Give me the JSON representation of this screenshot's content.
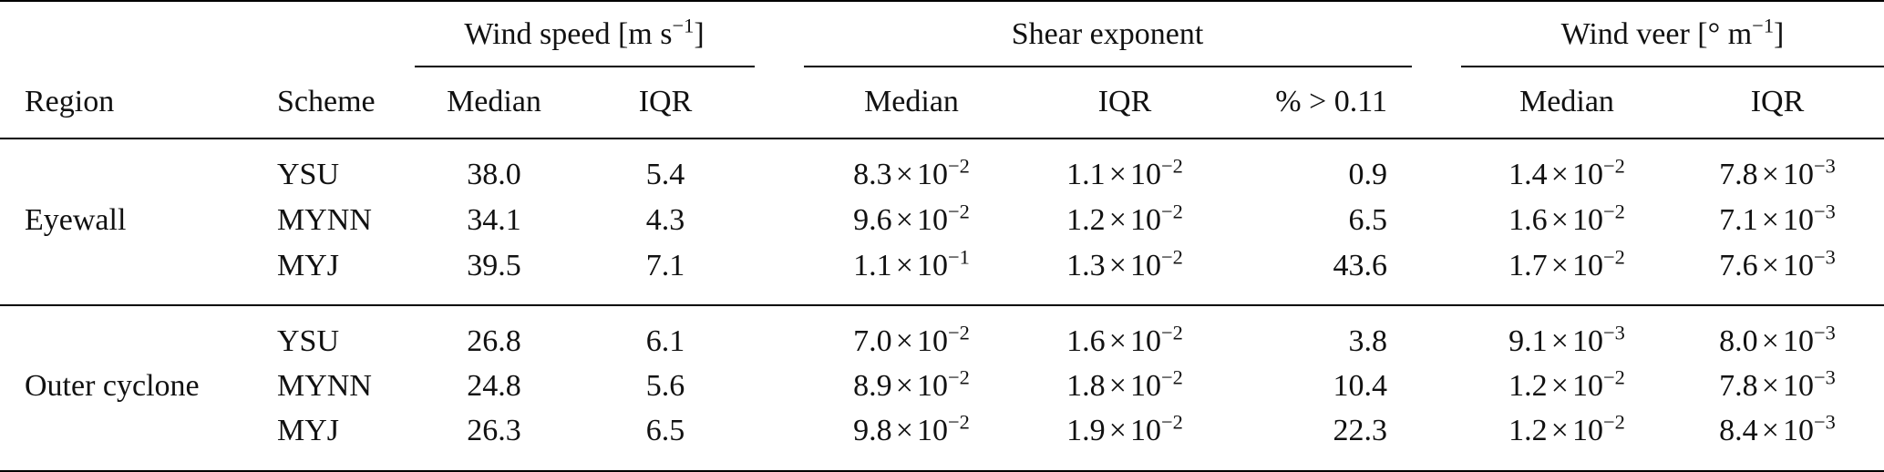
{
  "header": {
    "groups": {
      "wind_speed": {
        "label": "Wind speed [m s",
        "sup": "−1",
        "suffix": "]"
      },
      "shear": {
        "label": "Shear exponent"
      },
      "wind_veer": {
        "label": "Wind veer [° m",
        "sup": "−1",
        "suffix": "]"
      }
    },
    "cols": {
      "region": "Region",
      "scheme": "Scheme",
      "ws_median": "Median",
      "ws_iqr": "IQR",
      "sh_median": "Median",
      "sh_iqr": "IQR",
      "sh_pct": "% > 0.11",
      "wv_median": "Median",
      "wv_iqr": "IQR"
    }
  },
  "regions": [
    {
      "name": "Eyewall",
      "rows": [
        {
          "scheme": "YSU",
          "ws_median": "38.0",
          "ws_iqr": "5.4",
          "sh_median": {
            "m": "8.3",
            "e": "−2"
          },
          "sh_iqr": {
            "m": "1.1",
            "e": "−2"
          },
          "sh_pct": "0.9",
          "wv_median": {
            "m": "1.4",
            "e": "−2"
          },
          "wv_iqr": {
            "m": "7.8",
            "e": "−3"
          }
        },
        {
          "scheme": "MYNN",
          "ws_median": "34.1",
          "ws_iqr": "4.3",
          "sh_median": {
            "m": "9.6",
            "e": "−2"
          },
          "sh_iqr": {
            "m": "1.2",
            "e": "−2"
          },
          "sh_pct": "6.5",
          "wv_median": {
            "m": "1.6",
            "e": "−2"
          },
          "wv_iqr": {
            "m": "7.1",
            "e": "−3"
          }
        },
        {
          "scheme": "MYJ",
          "ws_median": "39.5",
          "ws_iqr": "7.1",
          "sh_median": {
            "m": "1.1",
            "e": "−1"
          },
          "sh_iqr": {
            "m": "1.3",
            "e": "−2"
          },
          "sh_pct": "43.6",
          "wv_median": {
            "m": "1.7",
            "e": "−2"
          },
          "wv_iqr": {
            "m": "7.6",
            "e": "−3"
          }
        }
      ]
    },
    {
      "name": "Outer cyclone",
      "rows": [
        {
          "scheme": "YSU",
          "ws_median": "26.8",
          "ws_iqr": "6.1",
          "sh_median": {
            "m": "7.0",
            "e": "−2"
          },
          "sh_iqr": {
            "m": "1.6",
            "e": "−2"
          },
          "sh_pct": "3.8",
          "wv_median": {
            "m": "9.1",
            "e": "−3"
          },
          "wv_iqr": {
            "m": "8.0",
            "e": "−3"
          }
        },
        {
          "scheme": "MYNN",
          "ws_median": "24.8",
          "ws_iqr": "5.6",
          "sh_median": {
            "m": "8.9",
            "e": "−2"
          },
          "sh_iqr": {
            "m": "1.8",
            "e": "−2"
          },
          "sh_pct": "10.4",
          "wv_median": {
            "m": "1.2",
            "e": "−2"
          },
          "wv_iqr": {
            "m": "7.8",
            "e": "−3"
          }
        },
        {
          "scheme": "MYJ",
          "ws_median": "26.3",
          "ws_iqr": "6.5",
          "sh_median": {
            "m": "9.8",
            "e": "−2"
          },
          "sh_iqr": {
            "m": "1.9",
            "e": "−2"
          },
          "sh_pct": "22.3",
          "wv_median": {
            "m": "1.2",
            "e": "−2"
          },
          "wv_iqr": {
            "m": "8.4",
            "e": "−3"
          }
        }
      ]
    }
  ]
}
